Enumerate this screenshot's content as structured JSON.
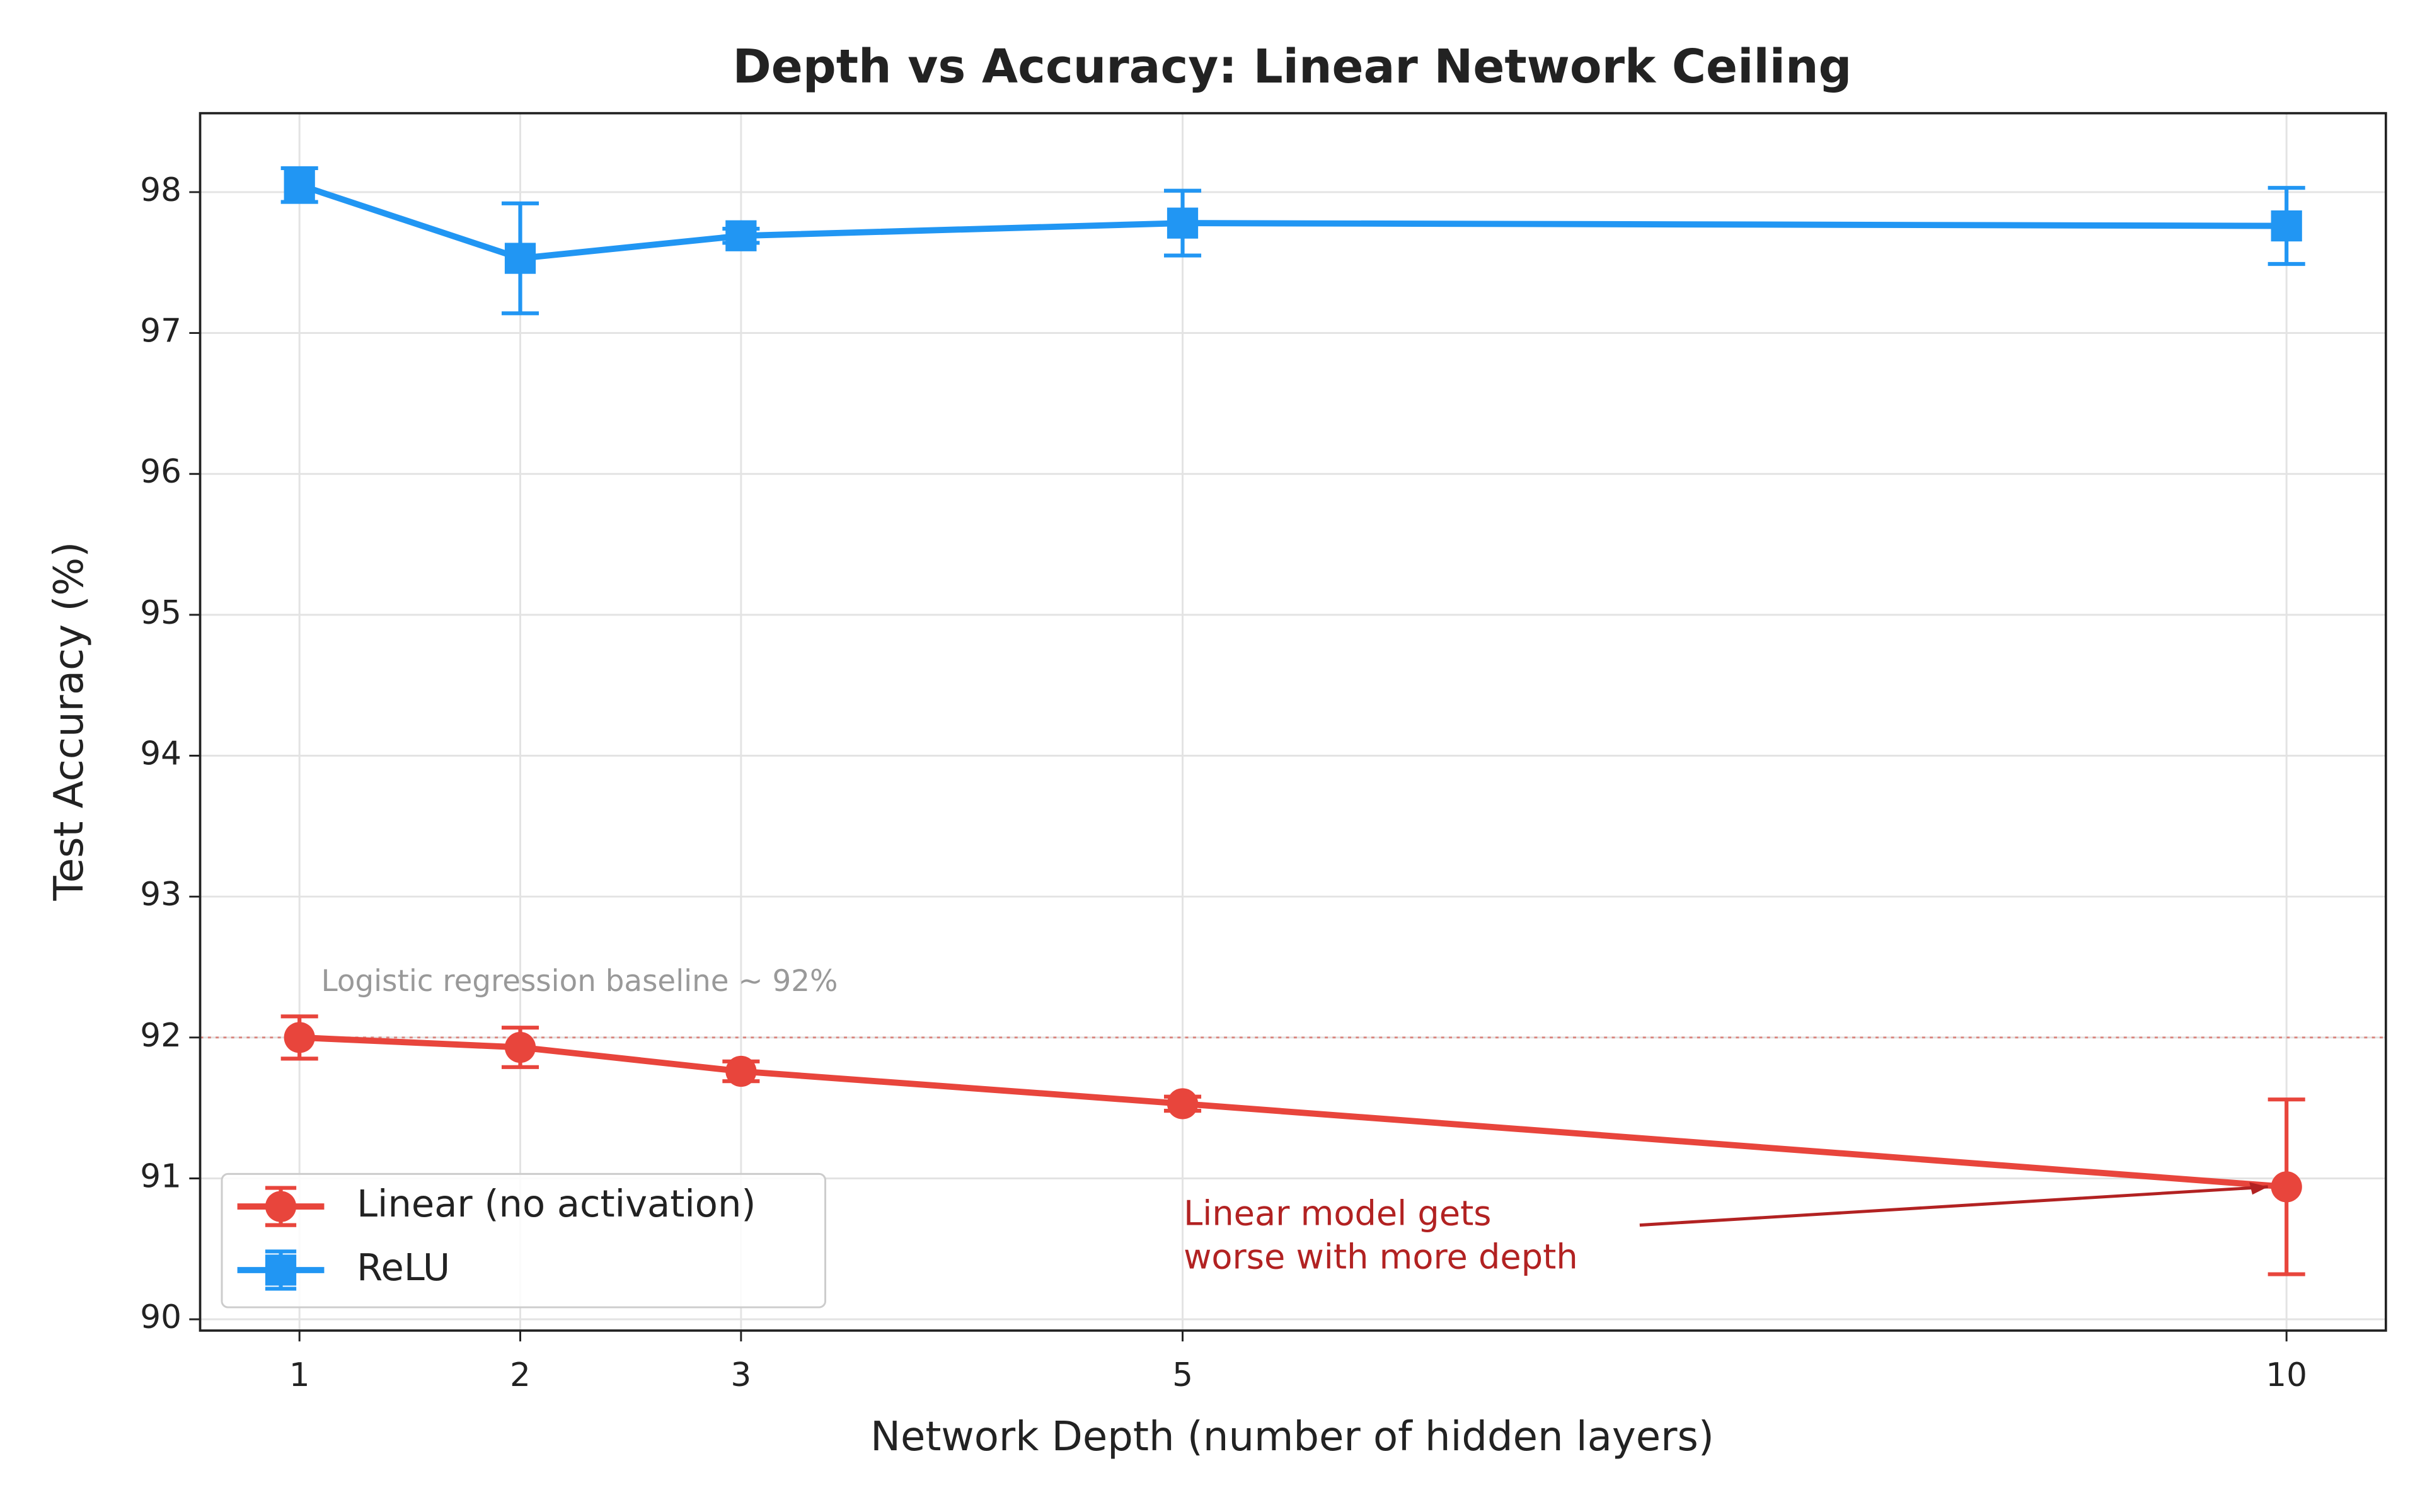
{
  "chart_data": {
    "type": "line",
    "title": "Depth vs Accuracy: Linear Network Ceiling",
    "xlabel": "Network Depth (number of hidden layers)",
    "ylabel": "Test Accuracy (%)",
    "x": [
      1,
      2,
      3,
      5,
      10
    ],
    "series": [
      {
        "name": "Linear (no activation)",
        "color": "#e8453c",
        "marker": "circle",
        "values": [
          92.0,
          91.93,
          91.76,
          91.53,
          90.94
        ],
        "errors": [
          0.15,
          0.14,
          0.07,
          0.05,
          0.62
        ]
      },
      {
        "name": "ReLU",
        "color": "#2196f3",
        "marker": "square",
        "values": [
          98.05,
          97.53,
          97.69,
          97.78,
          97.76
        ],
        "errors": [
          0.12,
          0.39,
          0.05,
          0.23,
          0.27
        ]
      }
    ],
    "xlim": [
      0.55,
      10.45
    ],
    "ylim": [
      89.92,
      98.56
    ],
    "xticks": [
      1,
      2,
      3,
      5,
      10
    ],
    "yticks": [
      90,
      91,
      92,
      93,
      94,
      95,
      96,
      97,
      98
    ],
    "grid": true,
    "legend": "lower left",
    "baseline": {
      "value": 92,
      "label": "Logistic regression baseline ~ 92%",
      "color": "#d9837c"
    },
    "annotation": {
      "lines": [
        "Linear model gets",
        "worse with more depth"
      ],
      "color": "#b22222"
    }
  }
}
